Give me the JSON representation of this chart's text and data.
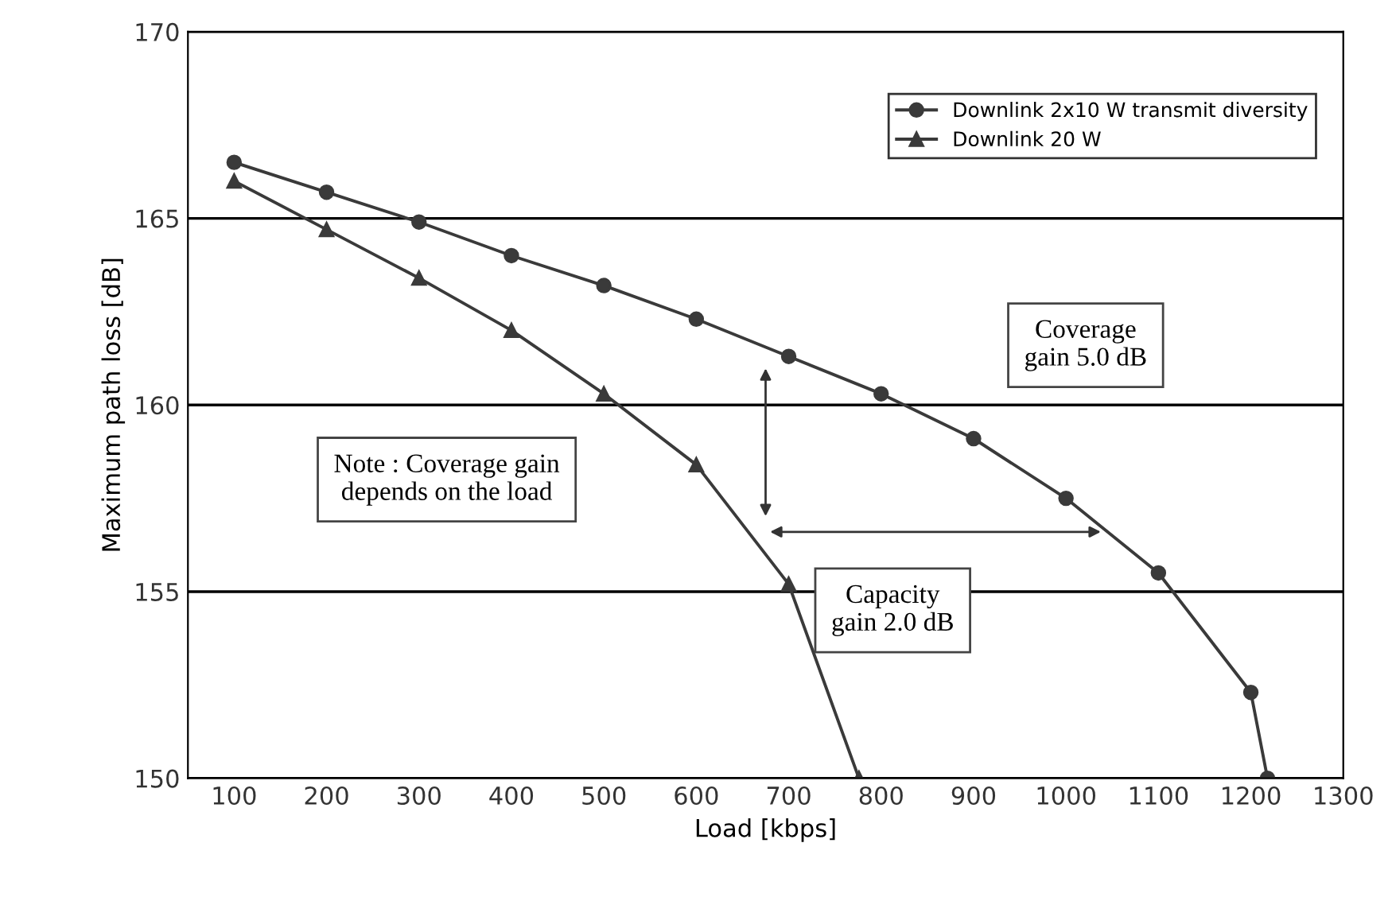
{
  "chart_data": {
    "type": "line",
    "xlabel": "Load [kbps]",
    "ylabel": "Maximum path loss [dB]",
    "xlim": [
      50,
      1300
    ],
    "xticks": [
      100,
      200,
      300,
      400,
      500,
      600,
      700,
      800,
      900,
      1000,
      1100,
      1200,
      1300
    ],
    "ylim": [
      150,
      170
    ],
    "yticks": [
      150,
      155,
      160,
      165,
      170
    ],
    "grid": "y",
    "legend": "top right",
    "series": [
      {
        "name": "Downlink 2x10 W transmit diversity",
        "color": "#3a3a3a",
        "marker": "circle",
        "x": [
          100,
          200,
          300,
          400,
          500,
          600,
          700,
          800,
          900,
          1000,
          1100,
          1200,
          1218
        ],
        "values": [
          166.5,
          165.7,
          164.9,
          164.0,
          163.2,
          162.3,
          161.3,
          160.3,
          159.1,
          157.5,
          155.5,
          152.3,
          150
        ]
      },
      {
        "name": "Downlink 20 W",
        "color": "#3a3a3a",
        "marker": "triangle",
        "x": [
          100,
          200,
          300,
          400,
          500,
          600,
          700,
          776
        ],
        "values": [
          166.0,
          164.7,
          163.4,
          162.0,
          160.3,
          158.4,
          155.2,
          150
        ]
      }
    ],
    "annotations": [
      "Coverage\ngain 5.0 dB",
      "Capacity\ngain 2.0 dB",
      "Note : Coverage gain\ndepends on the load"
    ]
  }
}
